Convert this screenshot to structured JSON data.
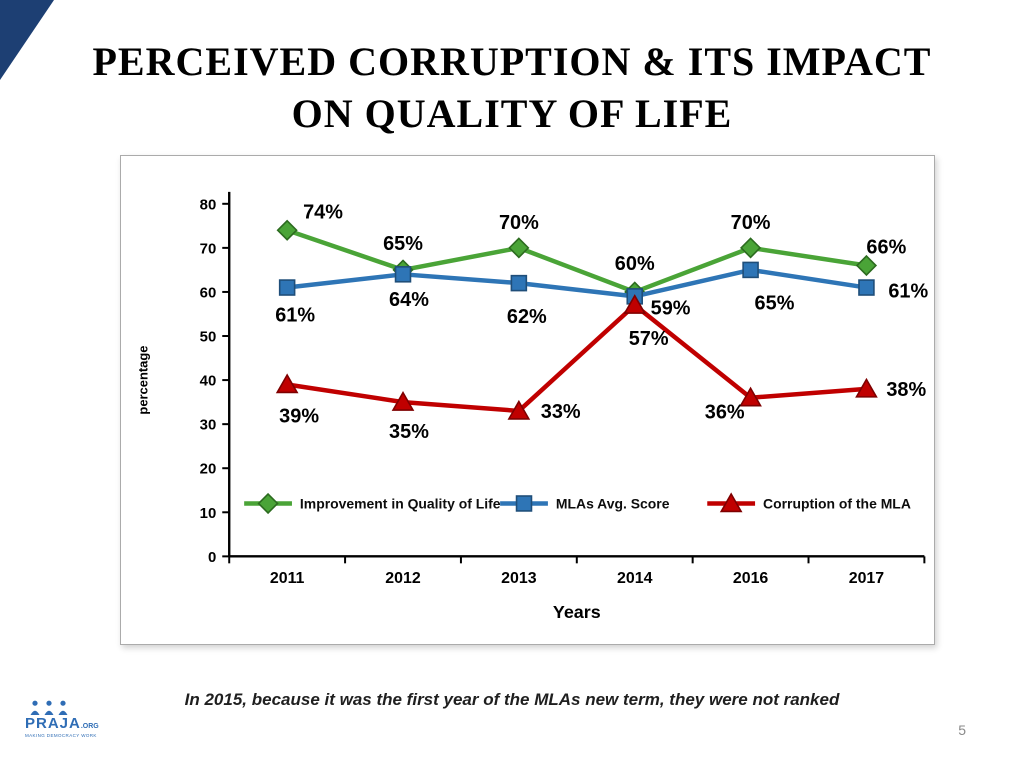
{
  "slide": {
    "title_line1": "PERCEIVED CORRUPTION & ITS IMPACT",
    "title_line2": "ON QUALITY OF LIFE",
    "footnote": "In 2015, because it was the first year of the MLAs new term, they were not ranked",
    "page_number": "5",
    "logo": {
      "name": "PRAJA",
      "suffix": ".ORG",
      "tagline": "MAKING DEMOCRACY WORK",
      "color": "#2f6db5"
    }
  },
  "chart_data": {
    "type": "line",
    "title": "PERCEIVED CORRUPTION & ITS IMPACT ON QUALITY OF LIFE",
    "categories": [
      "2011",
      "2012",
      "2013",
      "2014",
      "2016",
      "2017"
    ],
    "series": [
      {
        "name": "Improvement in Quality of Life",
        "marker": "diamond",
        "color": "#4AA437",
        "edge_color": "#2C6B1F",
        "values": [
          74,
          65,
          70,
          60,
          70,
          66
        ]
      },
      {
        "name": "MLAs Avg. Score",
        "marker": "square",
        "color": "#2E75B6",
        "edge_color": "#1F4E79",
        "values": [
          61,
          64,
          62,
          59,
          65,
          61
        ]
      },
      {
        "name": "Corruption of the MLA",
        "marker": "triangle",
        "color": "#C00000",
        "edge_color": "#7E0000",
        "values": [
          39,
          35,
          33,
          57,
          36,
          38
        ]
      }
    ],
    "label_suffix": "%",
    "xlabel": "Years",
    "ylabel": "percentage",
    "ylim": [
      0,
      80
    ],
    "yticks": [
      0,
      10,
      20,
      30,
      40,
      50,
      60,
      70,
      80
    ],
    "grid": false,
    "legend_position": "inside-bottom"
  }
}
